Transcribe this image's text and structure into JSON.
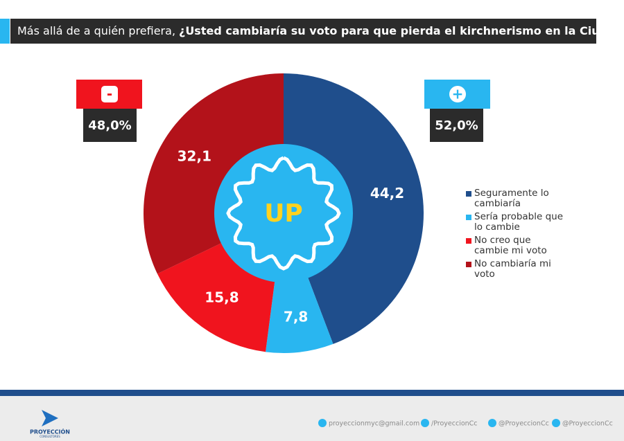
{
  "chart_data": {
    "type": "pie",
    "title_intro": "Más allá de a quién prefiera,",
    "title": "¿Usted cambiaría su voto para que pierda el kirchnerismo en la Ciudad?",
    "categories": [
      "Seguramente lo cambiaría",
      "Sería probable que lo cambie",
      "No creo que cambie mi voto",
      "No cambiaría mi voto"
    ],
    "values": [
      44.2,
      7.8,
      15.8,
      32.1
    ],
    "value_labels": [
      "44,2",
      "7,8",
      "15,8",
      "32,1"
    ],
    "colors": [
      "#1f4e8c",
      "#29b6f0",
      "#f0141e",
      "#b3121a"
    ],
    "center_label": "UP",
    "annotations": [
      {
        "symbol": "-",
        "value": 48.0,
        "label": "48,0%",
        "color": "#f0141e"
      },
      {
        "symbol": "+",
        "value": 52.0,
        "label": "52,0%",
        "color": "#29b6f0"
      }
    ]
  },
  "footer": {
    "brand": "PROYECCIÓN",
    "brand_sub": "CONSULTORES",
    "contacts": [
      "proyeccionmyc@gmail.com",
      "/ProyeccionCc",
      "@ProyeccionCc",
      "@ProyeccionCc"
    ]
  }
}
